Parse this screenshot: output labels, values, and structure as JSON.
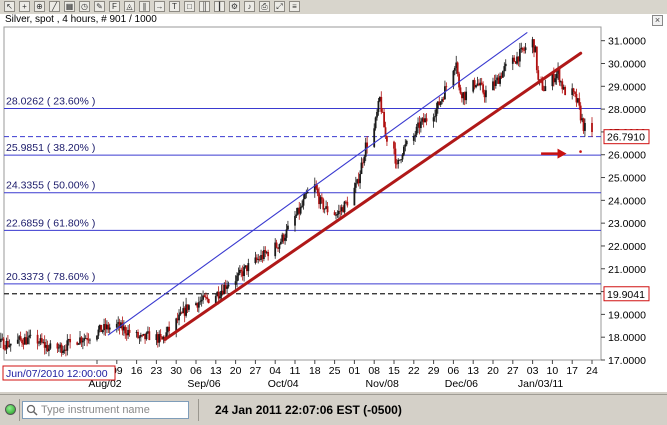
{
  "header": {
    "title": "Silver, spot , 4 hours, # 901 / 1000"
  },
  "status": {
    "datetime": "24 Jan 2011 22:07:06",
    "timezone": "EST (-0500)",
    "instrument_placeholder": "Type instrument name"
  },
  "icons": [
    "pointer-icon",
    "cross-icon",
    "zoom-icon",
    "line-icon",
    "grid-icon",
    "period-icon",
    "draw-icon",
    "fib-icon",
    "compass-icon",
    "channel-icon",
    "arrow-icon",
    "text-icon",
    "shape-icon",
    "candle-icon",
    "bar-icon",
    "settings-icon",
    "bell-icon",
    "print-icon",
    "expand-icon",
    "menu-icon"
  ],
  "colors": {
    "candle_up": "#1a1a1a",
    "candle_down": "#b01010",
    "fib_line": "#3a3ad0",
    "trend_red": "#b01818",
    "trend_blue": "#3a3ad0",
    "price_box": "#d01010",
    "arrow": "#c81010"
  },
  "chart_data": {
    "type": "candlestick",
    "instrument": "Silver, spot",
    "timeframe": "4 hours",
    "ylim": [
      17.0,
      31.6
    ],
    "y_ticks": [
      "17.0000",
      "18.0000",
      "19.0000",
      "20.0000",
      "21.0000",
      "22.0000",
      "23.0000",
      "24.0000",
      "25.0000",
      "26.0000",
      "27.0000",
      "28.0000",
      "29.0000",
      "30.0000",
      "31.0000"
    ],
    "x_tick_labels": [
      "02",
      "09",
      "16",
      "23",
      "30",
      "06",
      "13",
      "20",
      "27",
      "04",
      "11",
      "18",
      "25",
      "01",
      "08",
      "15",
      "22",
      "29",
      "06",
      "13",
      "20",
      "27",
      "03",
      "10",
      "17",
      "24"
    ],
    "x_tick_dates": [
      "2010-08-02",
      "2010-08-09",
      "2010-08-16",
      "2010-08-23",
      "2010-08-30",
      "2010-09-06",
      "2010-09-13",
      "2010-09-20",
      "2010-09-27",
      "2010-10-04",
      "2010-10-11",
      "2010-10-18",
      "2010-10-25",
      "2010-11-01",
      "2010-11-08",
      "2010-11-15",
      "2010-11-22",
      "2010-11-29",
      "2010-12-06",
      "2010-12-13",
      "2010-12-20",
      "2010-12-27",
      "2011-01-03",
      "2011-01-10",
      "2011-01-17",
      "2011-01-24"
    ],
    "month_labels": [
      "Aug/02",
      "Sep/06",
      "Oct/04",
      "Nov/08",
      "Dec/06",
      "Jan/03/11"
    ],
    "start_date_label": "Jun/07/2010 12:00:00",
    "fib_levels": [
      {
        "price": 28.0262,
        "label": "28.0262 ( 23.60% )"
      },
      {
        "price": 25.9851,
        "label": "25.9851 ( 38.20% )"
      },
      {
        "price": 24.3355,
        "label": "24.3355 ( 50.00% )"
      },
      {
        "price": 22.6859,
        "label": "22.6859 ( 61.80% )"
      },
      {
        "price": 20.3373,
        "label": "20.3373 ( 78.60% )"
      }
    ],
    "hlines_dashed": [
      19.9041,
      26.791
    ],
    "price_labels": [
      "26.7910",
      "19.9041"
    ],
    "trendlines": [
      {
        "color": "red",
        "from": [
          "2010-08-26",
          17.9
        ],
        "to": [
          "2011-01-20",
          30.45
        ]
      },
      {
        "color": "blue",
        "from": [
          "2010-08-06",
          18.1
        ],
        "to": [
          "2011-01-01",
          31.35
        ]
      }
    ],
    "price_path": [
      [
        "2010-06-07",
        18.65
      ],
      [
        "2010-06-10",
        18.25
      ],
      [
        "2010-06-14",
        18.15
      ],
      [
        "2010-06-18",
        17.95
      ],
      [
        "2010-06-23",
        17.65
      ],
      [
        "2010-06-28",
        17.75
      ],
      [
        "2010-07-02",
        17.7
      ],
      [
        "2010-07-07",
        17.9
      ],
      [
        "2010-07-12",
        17.85
      ],
      [
        "2010-07-16",
        17.5
      ],
      [
        "2010-07-21",
        17.55
      ],
      [
        "2010-07-26",
        17.9
      ],
      [
        "2010-07-30",
        18.05
      ],
      [
        "2010-08-04",
        18.35
      ],
      [
        "2010-08-09",
        18.5
      ],
      [
        "2010-08-13",
        18.25
      ],
      [
        "2010-08-18",
        17.9
      ],
      [
        "2010-08-21",
        18.1
      ],
      [
        "2010-08-25",
        17.85
      ],
      [
        "2010-08-27",
        18.25
      ],
      [
        "2010-09-01",
        18.95
      ],
      [
        "2010-09-03",
        19.35
      ],
      [
        "2010-09-07",
        19.55
      ],
      [
        "2010-09-10",
        19.65
      ],
      [
        "2010-09-14",
        19.95
      ],
      [
        "2010-09-17",
        20.35
      ],
      [
        "2010-09-21",
        20.65
      ],
      [
        "2010-09-24",
        21.05
      ],
      [
        "2010-09-28",
        21.4
      ],
      [
        "2010-10-01",
        21.7
      ],
      [
        "2010-10-05",
        22.05
      ],
      [
        "2010-10-08",
        22.6
      ],
      [
        "2010-10-11",
        23.25
      ],
      [
        "2010-10-13",
        23.6
      ],
      [
        "2010-10-15",
        24.2
      ],
      [
        "2010-10-18",
        24.6
      ],
      [
        "2010-10-20",
        23.9
      ],
      [
        "2010-10-22",
        23.6
      ],
      [
        "2010-10-26",
        23.4
      ],
      [
        "2010-10-29",
        23.85
      ],
      [
        "2010-11-02",
        24.7
      ],
      [
        "2010-11-05",
        26.4
      ],
      [
        "2010-11-08",
        27.1
      ],
      [
        "2010-11-10",
        28.45
      ],
      [
        "2010-11-12",
        26.8
      ],
      [
        "2010-11-15",
        26.3
      ],
      [
        "2010-11-16",
        25.4
      ],
      [
        "2010-11-18",
        26.2
      ],
      [
        "2010-11-22",
        26.8
      ],
      [
        "2010-11-24",
        27.3
      ],
      [
        "2010-11-26",
        27.5
      ],
      [
        "2010-11-30",
        28.0
      ],
      [
        "2010-12-02",
        28.5
      ],
      [
        "2010-12-04",
        29.2
      ],
      [
        "2010-12-07",
        30.2
      ],
      [
        "2010-12-08",
        28.85
      ],
      [
        "2010-12-10",
        28.6
      ],
      [
        "2010-12-14",
        29.2
      ],
      [
        "2010-12-17",
        28.7
      ],
      [
        "2010-12-21",
        29.15
      ],
      [
        "2010-12-24",
        29.75
      ],
      [
        "2010-12-28",
        30.2
      ],
      [
        "2010-12-31",
        30.6
      ],
      [
        "2011-01-03",
        30.95
      ],
      [
        "2011-01-04",
        30.5
      ],
      [
        "2011-01-05",
        29.2
      ],
      [
        "2011-01-07",
        28.9
      ],
      [
        "2011-01-10",
        29.35
      ],
      [
        "2011-01-12",
        29.6
      ],
      [
        "2011-01-14",
        28.8
      ],
      [
        "2011-01-17",
        28.7
      ],
      [
        "2011-01-19",
        28.25
      ],
      [
        "2011-01-20",
        27.7
      ],
      [
        "2011-01-21",
        27.25
      ],
      [
        "2011-01-24",
        26.79
      ]
    ],
    "annotation_arrow": {
      "from": [
        "2011-01-06",
        26.05
      ],
      "to": [
        "2011-01-15",
        26.05
      ]
    }
  }
}
